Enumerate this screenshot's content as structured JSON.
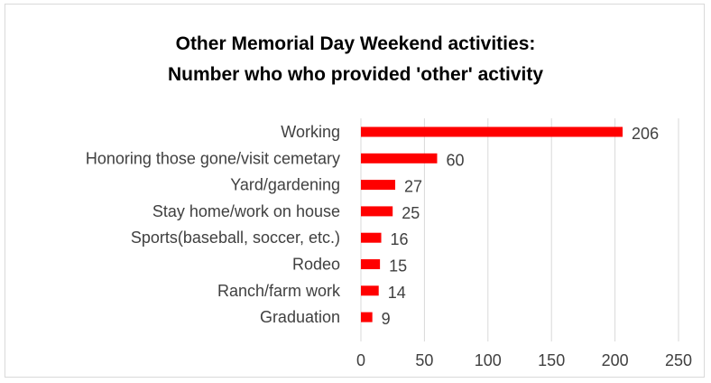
{
  "chart_data": {
    "type": "bar",
    "orientation": "horizontal",
    "title": "Other Memorial Day Weekend activities:",
    "subtitle": "Number who who provided 'other' activity",
    "categories": [
      "Working",
      "Honoring those gone/visit cemetary",
      "Yard/gardening",
      "Stay home/work on house",
      "Sports(baseball, soccer, etc.)",
      "Rodeo",
      "Ranch/farm work",
      "Graduation"
    ],
    "values": [
      206,
      60,
      27,
      25,
      16,
      15,
      14,
      9
    ],
    "xlim": [
      0,
      250
    ],
    "xticks": [
      "0",
      "50",
      "100",
      "150",
      "200",
      "250"
    ],
    "bar_color": "#ff0000",
    "grid": "vertical",
    "legend": "none",
    "data_labels": true
  }
}
